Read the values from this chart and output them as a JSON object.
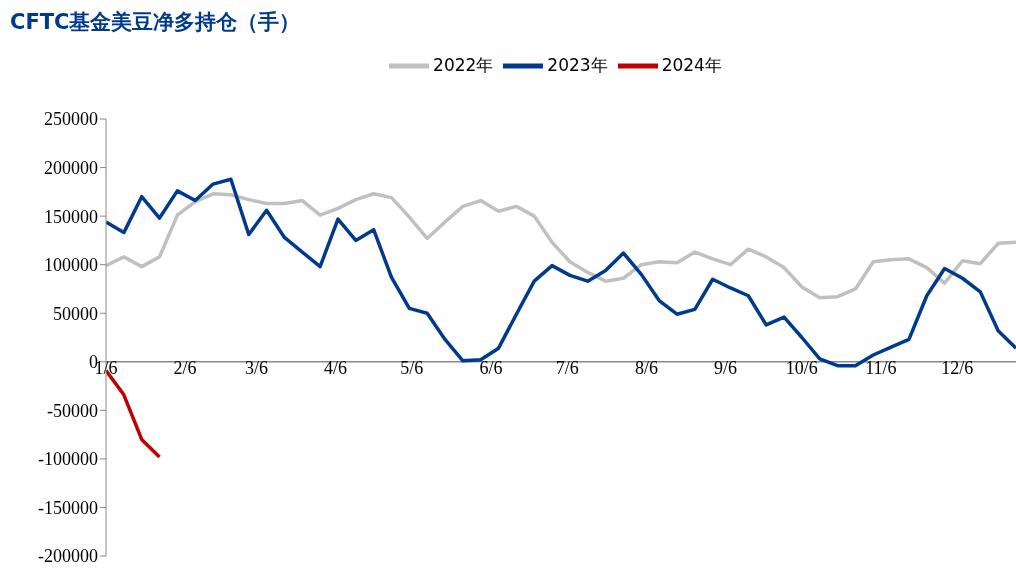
{
  "chart_data": {
    "type": "line",
    "title": "CFTC基金美豆净多持仓（手）",
    "x": [
      "--01-06",
      "--01-13",
      "--01-20",
      "--01-27",
      "--02-03",
      "--02-10",
      "--02-17",
      "--02-24",
      "--03-03",
      "--03-10",
      "--03-17",
      "--03-24",
      "--03-31",
      "--04-07",
      "--04-14",
      "--04-21",
      "--04-28",
      "--05-05",
      "--05-12",
      "--05-19",
      "--05-26",
      "--06-02",
      "--06-09",
      "--06-16",
      "--06-23",
      "--06-30",
      "--07-07",
      "--07-14",
      "--07-21",
      "--07-28",
      "--08-04",
      "--08-11",
      "--08-18",
      "--08-25",
      "--09-01",
      "--09-08",
      "--09-15",
      "--09-22",
      "--09-29",
      "--10-06",
      "--10-13",
      "--10-20",
      "--10-27",
      "--11-03",
      "--11-10",
      "--11-17",
      "--11-24",
      "--12-01",
      "--12-08",
      "--12-15",
      "--12-22",
      "--12-29"
    ],
    "series": [
      {
        "name": "2022年",
        "color": "#c0c0c0",
        "values": [
          99000,
          108000,
          98000,
          108000,
          151000,
          165000,
          173000,
          172000,
          167000,
          163000,
          163000,
          166000,
          151000,
          158000,
          167000,
          173000,
          169000,
          149000,
          127000,
          144000,
          160000,
          166000,
          155000,
          160000,
          150000,
          123000,
          103000,
          92000,
          83000,
          86000,
          100000,
          103000,
          102000,
          113000,
          106000,
          100000,
          116000,
          108000,
          97000,
          77000,
          66000,
          67000,
          75000,
          103000,
          105000,
          106000,
          97000,
          81000,
          104000,
          101000,
          122000,
          123000
        ]
      },
      {
        "name": "2023年",
        "color": "#003a8c",
        "values": [
          144000,
          133000,
          170000,
          148000,
          176000,
          166000,
          183000,
          188000,
          131000,
          156000,
          128000,
          113000,
          98000,
          147000,
          125000,
          136000,
          87000,
          55000,
          50000,
          23000,
          1000,
          2000,
          14000,
          49000,
          83000,
          99000,
          89000,
          83000,
          94000,
          112000,
          90000,
          63000,
          49000,
          54000,
          85000,
          76000,
          68000,
          38000,
          46000,
          25000,
          3000,
          -4000,
          -4000,
          7000,
          15000,
          23000,
          68000,
          96000,
          86000,
          72000,
          32000,
          14000
        ]
      },
      {
        "name": "2024年",
        "color": "#c00000",
        "x": [
          "--01-06",
          "--01-13",
          "--01-20",
          "--01-27"
        ],
        "values": [
          -9000,
          -34000,
          -80000,
          -98000
        ]
      }
    ],
    "xlim": [
      "--01-06",
      "--12-29"
    ],
    "xticks": [
      {
        "value": "--01-06",
        "label": "1/6"
      },
      {
        "value": "--02-06",
        "label": "2/6"
      },
      {
        "value": "--03-06",
        "label": "3/6"
      },
      {
        "value": "--04-06",
        "label": "4/6"
      },
      {
        "value": "--05-06",
        "label": "5/6"
      },
      {
        "value": "--06-06",
        "label": "6/6"
      },
      {
        "value": "--07-06",
        "label": "7/6"
      },
      {
        "value": "--08-06",
        "label": "8/6"
      },
      {
        "value": "--09-06",
        "label": "9/6"
      },
      {
        "value": "--10-06",
        "label": "10/6"
      },
      {
        "value": "--11-06",
        "label": "11/6"
      },
      {
        "value": "--12-06",
        "label": "12/6"
      }
    ],
    "ylim": [
      -200000,
      250000
    ],
    "yticks": [
      -200000,
      -150000,
      -100000,
      -50000,
      0,
      50000,
      100000,
      150000,
      200000,
      250000
    ],
    "grid": false,
    "legend": "top",
    "marker": "none",
    "line_style": "solid"
  }
}
